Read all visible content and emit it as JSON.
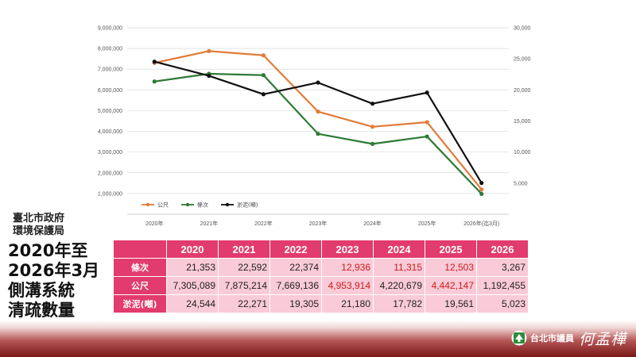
{
  "chart_data": {
    "type": "line",
    "categories": [
      "2020年",
      "2021年",
      "2022年",
      "2023年",
      "2024年",
      "2025年",
      "2026年(迄3月)"
    ],
    "y_left": {
      "min": 0,
      "max": 9000000,
      "ticks": [
        "1,000,000",
        "2,000,000",
        "3,000,000",
        "4,000,000",
        "5,000,000",
        "6,000,000",
        "7,000,000",
        "8,000,000",
        "9,000,000"
      ]
    },
    "y_right": {
      "min": 0,
      "max": 30000,
      "ticks": [
        "5,000",
        "10,000",
        "15,000",
        "20,000",
        "25,000",
        "30,000"
      ]
    },
    "grid": true,
    "legend_position": "bottom-left",
    "series": [
      {
        "name": "公尺",
        "axis": "left",
        "color": "#e27b3a",
        "values": [
          7305089,
          7875214,
          7669136,
          4953914,
          4220679,
          4442147,
          1192455
        ]
      },
      {
        "name": "條次",
        "axis": "right",
        "color": "#2e7a34",
        "values": [
          21353,
          22592,
          22374,
          12936,
          11315,
          12503,
          3267
        ]
      },
      {
        "name": "淤泥(噸)",
        "axis": "right",
        "color": "#111111",
        "values": [
          24544,
          22271,
          19305,
          21180,
          17782,
          19561,
          5023
        ]
      }
    ]
  },
  "title": {
    "org": [
      "臺北市政府",
      "環境保護局"
    ],
    "main": [
      "2020年至",
      "2026年3月",
      "側溝系統",
      "清疏數量"
    ]
  },
  "table": {
    "years": [
      "2020",
      "2021",
      "2022",
      "2023",
      "2024",
      "2025",
      "2026"
    ],
    "rows": [
      {
        "label": "條次",
        "values": [
          "21,353",
          "22,592",
          "22,374",
          "12,936",
          "11,315",
          "12,503",
          "3,267"
        ],
        "highlight": [
          false,
          false,
          false,
          true,
          true,
          true,
          false
        ]
      },
      {
        "label": "公尺",
        "values": [
          "7,305,089",
          "7,875,214",
          "7,669,136",
          "4,953,914",
          "4,220,679",
          "4,442,147",
          "1,192,455"
        ],
        "highlight": [
          false,
          false,
          false,
          true,
          false,
          true,
          false
        ]
      },
      {
        "label": "淤泥(噸)",
        "values": [
          "24,544",
          "22,271",
          "19,305",
          "21,180",
          "17,782",
          "19,561",
          "5,023"
        ],
        "highlight": [
          false,
          false,
          false,
          false,
          false,
          false,
          false
        ]
      }
    ]
  },
  "footer": {
    "role": "台北市議員",
    "name": "何孟樺",
    "icon": "party-flag-icon",
    "highlight_color": "#cc1c1c",
    "header_color": "#e23b6e",
    "cell_color": "#f9cad7"
  }
}
